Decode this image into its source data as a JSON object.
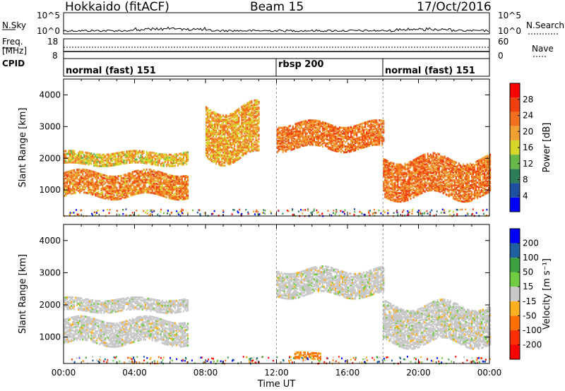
{
  "header": {
    "station": "Hokkaido (fitACF)",
    "beam": "Beam 15",
    "date": "17/Oct/2016"
  },
  "top_strips": {
    "nsky_label": "N.Sky",
    "nsky_tick_hi": "10^5",
    "nsky_tick_lo": "10^0",
    "nsearch_label": "N.Search",
    "nsearch_tick_hi": "10^5",
    "nsearch_tick_lo": "10^0",
    "freq_label_1": "Freq.",
    "freq_label_2": "[MHz]",
    "freq_tick_hi": "18",
    "freq_tick_lo": "8",
    "nave_label": "Nave",
    "nave_tick_hi": "60",
    "nave_tick_lo": "0",
    "cpid_label": "CPID",
    "cpid_segments": [
      {
        "label": "normal (fast) 151",
        "start_hour": 0
      },
      {
        "label": "rbsp 200",
        "start_hour": 12
      },
      {
        "label": "normal (fast) 151",
        "start_hour": 18
      }
    ]
  },
  "colors": {
    "power": [
      "#0000ff",
      "#1f4fa0",
      "#2e7d5a",
      "#66b84a",
      "#d6d62a",
      "#f0a030",
      "#f07020",
      "#f04010",
      "#ff0000"
    ],
    "velocity": [
      "#ff0000",
      "#ff3000",
      "#ff7000",
      "#ffb020",
      "#c8c8c8",
      "#70cc40",
      "#3aa040",
      "#205fa0",
      "#0000ff"
    ],
    "frame": "#000000"
  },
  "chart_data": [
    {
      "type": "heatmap",
      "title": "",
      "xlabel": "Time UT",
      "ylabel": "Slant Range [km]",
      "xlim": [
        0,
        24
      ],
      "ylim": [
        180,
        4500
      ],
      "x_ticks": [
        "00:00",
        "04:00",
        "08:00",
        "12:00",
        "16:00",
        "20:00",
        "00:00"
      ],
      "y_ticks": [
        "1000",
        "2000",
        "3000",
        "4000"
      ],
      "colorbar": {
        "label": "Power [dB]",
        "ticks": [
          "4",
          "8",
          "12",
          "16",
          "20",
          "24",
          "28"
        ],
        "range": [
          0,
          30
        ]
      },
      "echo_bands": [
        {
          "t_start": 0.0,
          "t_end": 7.0,
          "range_km": [
            800,
            1550
          ],
          "power_db": 26
        },
        {
          "t_start": 0.0,
          "t_end": 7.0,
          "range_km": [
            1800,
            2200
          ],
          "power_db": 22
        },
        {
          "t_start": 8.0,
          "t_end": 11.0,
          "range_km": [
            2000,
            3600
          ],
          "power_db": 24
        },
        {
          "t_start": 12.0,
          "t_end": 18.0,
          "range_km": [
            2300,
            3100
          ],
          "power_db": 27
        },
        {
          "t_start": 18.0,
          "t_end": 24.0,
          "range_km": [
            800,
            2000
          ],
          "power_db": 27
        }
      ]
    },
    {
      "type": "heatmap",
      "title": "",
      "xlabel": "Time UT",
      "ylabel": "Slant Range [km]",
      "xlim": [
        0,
        24
      ],
      "ylim": [
        180,
        4500
      ],
      "x_ticks": [
        "00:00",
        "04:00",
        "08:00",
        "12:00",
        "16:00",
        "20:00",
        "00:00"
      ],
      "y_ticks": [
        "1000",
        "2000",
        "3000",
        "4000"
      ],
      "colorbar": {
        "label": "Velocity [m s⁻¹]",
        "ticks": [
          "-200",
          "-100",
          "-50",
          "-15",
          "15",
          "50",
          "100",
          "200"
        ],
        "range": [
          -250,
          250
        ]
      },
      "echo_bands": [
        {
          "t_start": 0.0,
          "t_end": 7.0,
          "range_km": [
            800,
            1550
          ],
          "velocity": 0
        },
        {
          "t_start": 0.0,
          "t_end": 7.0,
          "range_km": [
            1800,
            2200
          ],
          "velocity": 0
        },
        {
          "t_start": 12.0,
          "t_end": 18.0,
          "range_km": [
            2300,
            3100
          ],
          "velocity": 0
        },
        {
          "t_start": 18.0,
          "t_end": 24.0,
          "range_km": [
            800,
            2000
          ],
          "velocity": 0
        },
        {
          "t_start": 13.0,
          "t_end": 14.5,
          "range_km": [
            300,
            500
          ],
          "velocity": -60
        }
      ]
    }
  ]
}
